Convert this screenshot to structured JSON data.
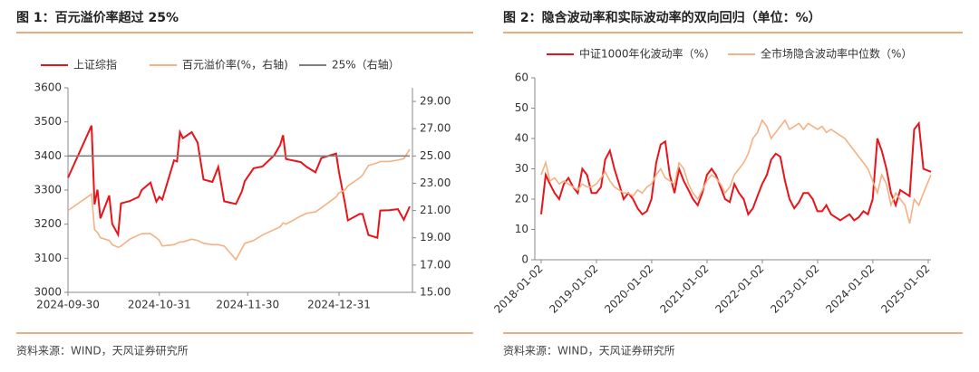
{
  "chart_data": [
    {
      "type": "line",
      "title": "图 1：百元溢价率超过 25%",
      "source": "资料来源：WIND，天风证券研究所",
      "x": [
        "2024-09-30",
        "2024-10-08",
        "2024-10-09",
        "2024-10-10",
        "2024-10-11",
        "2024-10-14",
        "2024-10-15",
        "2024-10-17",
        "2024-10-18",
        "2024-10-21",
        "2024-10-24",
        "2024-10-25",
        "2024-10-28",
        "2024-10-30",
        "2024-10-31",
        "2024-11-01",
        "2024-11-05",
        "2024-11-06",
        "2024-11-07",
        "2024-11-08",
        "2024-11-11",
        "2024-11-13",
        "2024-11-15",
        "2024-11-18",
        "2024-11-20",
        "2024-11-22",
        "2024-11-26",
        "2024-11-28",
        "2024-11-29",
        "2024-12-02",
        "2024-12-05",
        "2024-12-09",
        "2024-12-11",
        "2024-12-12",
        "2024-12-13",
        "2024-12-18",
        "2024-12-20",
        "2024-12-23",
        "2024-12-25",
        "2024-12-30",
        "2024-12-31",
        "2025-01-02",
        "2025-01-03",
        "2025-01-07",
        "2025-01-08",
        "2025-01-10",
        "2025-01-13",
        "2025-01-14",
        "2025-01-17",
        "2025-01-20",
        "2025-01-22",
        "2025-01-24"
      ],
      "series": [
        {
          "name": "上证综指",
          "color": "#e8141b",
          "values": [
            3336,
            3489,
            3258,
            3301,
            3217,
            3284,
            3201,
            3169,
            3261,
            3268,
            3280,
            3300,
            3322,
            3266,
            3280,
            3272,
            3387,
            3384,
            3470,
            3452,
            3470,
            3439,
            3331,
            3324,
            3368,
            3267,
            3259,
            3296,
            3326,
            3364,
            3369,
            3402,
            3432,
            3461,
            3391,
            3382,
            3368,
            3352,
            3394,
            3407,
            3352,
            3262,
            3211,
            3230,
            3230,
            3168,
            3160,
            3240,
            3241,
            3244,
            3213,
            3252
          ]
        },
        {
          "name": "百元溢价率(%，右轴)",
          "color": "#f4b183",
          "axis": "y2",
          "values": [
            21.0,
            22.2,
            19.6,
            19.4,
            19.0,
            18.8,
            18.5,
            18.3,
            18.4,
            18.9,
            19.2,
            19.3,
            19.3,
            19.0,
            18.8,
            18.4,
            18.5,
            18.6,
            18.7,
            18.7,
            18.9,
            18.8,
            18.6,
            18.5,
            18.5,
            18.4,
            17.4,
            18.2,
            18.6,
            18.8,
            19.2,
            19.6,
            19.8,
            20.1,
            20.0,
            20.6,
            20.8,
            20.9,
            21.2,
            22.0,
            22.3,
            22.5,
            22.8,
            23.4,
            23.6,
            24.3,
            24.5,
            24.6,
            24.6,
            24.7,
            24.8,
            25.5
          ]
        },
        {
          "name": "25%（右轴）",
          "color": "#7f7f7f",
          "axis": "y2",
          "values": [
            25,
            25,
            25,
            25,
            25,
            25,
            25,
            25,
            25,
            25,
            25,
            25,
            25,
            25,
            25,
            25,
            25,
            25,
            25,
            25,
            25,
            25,
            25,
            25,
            25,
            25,
            25,
            25,
            25,
            25,
            25,
            25,
            25,
            25,
            25,
            25,
            25,
            25,
            25,
            25,
            25,
            25,
            25,
            25,
            25,
            25,
            25,
            25,
            25,
            25,
            25,
            25
          ]
        }
      ],
      "xlim": [
        "2024-09-30",
        "2025-01-24"
      ],
      "xticks": [
        "2024-09-30",
        "2024-10-31",
        "2024-11-30",
        "2024-12-31"
      ],
      "ylim": [
        3000,
        3600
      ],
      "yticks": [
        3000,
        3100,
        3200,
        3300,
        3400,
        3500,
        3600
      ],
      "y2lim": [
        15,
        30
      ],
      "y2ticks": [
        {
          "value": 15,
          "label": "15.00"
        },
        {
          "value": 17,
          "label": "17.00"
        },
        {
          "value": 19,
          "label": "19.00"
        },
        {
          "value": 21,
          "label": "21.00"
        },
        {
          "value": 23,
          "label": "23.00"
        },
        {
          "value": 25,
          "label": "25.00"
        },
        {
          "value": 27,
          "label": "27.00"
        },
        {
          "value": 29,
          "label": "29.00"
        }
      ],
      "legend": "top"
    },
    {
      "type": "line",
      "title": "图 2：隐含波动率和实际波动率的双向回归（单位：%）",
      "source": "资料来源：WIND，天风证券研究所",
      "x": [
        "2018-01-02",
        "2018-02-01",
        "2018-03-01",
        "2018-04-01",
        "2018-05-01",
        "2018-06-01",
        "2018-07-01",
        "2018-08-01",
        "2018-09-01",
        "2018-10-01",
        "2018-11-01",
        "2018-12-01",
        "2019-01-01",
        "2019-02-01",
        "2019-03-01",
        "2019-04-01",
        "2019-05-01",
        "2019-06-01",
        "2019-07-01",
        "2019-08-01",
        "2019-09-01",
        "2019-10-01",
        "2019-11-01",
        "2019-12-01",
        "2020-01-01",
        "2020-02-01",
        "2020-03-01",
        "2020-04-01",
        "2020-05-01",
        "2020-06-01",
        "2020-07-01",
        "2020-08-01",
        "2020-09-01",
        "2020-10-01",
        "2020-11-01",
        "2020-12-01",
        "2021-01-01",
        "2021-02-01",
        "2021-03-01",
        "2021-04-01",
        "2021-05-01",
        "2021-06-01",
        "2021-07-01",
        "2021-08-01",
        "2021-09-01",
        "2021-10-01",
        "2021-11-01",
        "2021-12-01",
        "2022-01-01",
        "2022-02-01",
        "2022-03-01",
        "2022-04-01",
        "2022-05-01",
        "2022-06-01",
        "2022-07-01",
        "2022-08-01",
        "2022-09-01",
        "2022-10-01",
        "2022-11-01",
        "2022-12-01",
        "2023-01-01",
        "2023-02-01",
        "2023-03-01",
        "2023-04-01",
        "2023-05-01",
        "2023-06-01",
        "2023-07-01",
        "2023-08-01",
        "2023-09-01",
        "2023-10-01",
        "2023-11-01",
        "2023-12-01",
        "2024-01-01",
        "2024-02-01",
        "2024-03-01",
        "2024-04-01",
        "2024-05-01",
        "2024-06-01",
        "2024-07-01",
        "2024-08-01",
        "2024-09-01",
        "2024-10-01",
        "2024-11-01",
        "2024-12-01",
        "2025-01-20"
      ],
      "series": [
        {
          "name": "中证1000年化波动率（%）",
          "color": "#e8141b",
          "values": [
            15,
            28,
            25,
            22,
            20,
            25,
            27,
            24,
            22,
            30,
            28,
            22,
            22,
            24,
            33,
            36,
            30,
            25,
            20,
            22,
            20,
            17,
            15,
            16,
            20,
            32,
            38,
            39,
            28,
            22,
            30,
            26,
            23,
            20,
            18,
            22,
            28,
            30,
            28,
            24,
            20,
            19,
            25,
            22,
            20,
            15,
            17,
            21,
            25,
            28,
            33,
            35,
            34,
            26,
            20,
            17,
            19,
            22,
            22,
            20,
            16,
            16,
            18,
            15,
            14,
            13,
            14,
            15,
            13,
            14,
            16,
            15,
            20,
            40,
            36,
            30,
            22,
            18,
            23,
            22,
            21,
            43,
            45,
            30,
            29
          ]
        },
        {
          "name": "全市场隐含波动率中位数（%）",
          "color": "#f4b183",
          "values": [
            28,
            32,
            26,
            27,
            25,
            26,
            25,
            24,
            23,
            25,
            24,
            24,
            25,
            27,
            29,
            26,
            24,
            23,
            22,
            22,
            21,
            23,
            22,
            24,
            25,
            28,
            30,
            27,
            26,
            25,
            32,
            30,
            25,
            22,
            20,
            23,
            26,
            28,
            27,
            25,
            22,
            24,
            28,
            30,
            32,
            35,
            40,
            42,
            46,
            44,
            40,
            42,
            44,
            46,
            43,
            44,
            45,
            43,
            45,
            44,
            43,
            44,
            42,
            43,
            42,
            41,
            40,
            38,
            36,
            34,
            32,
            30,
            26,
            22,
            28,
            25,
            18,
            22,
            20,
            18,
            12,
            20,
            18,
            22,
            28
          ]
        }
      ],
      "xlim": [
        "2018-01-02",
        "2025-01-20"
      ],
      "xticks": [
        "2018-01-02",
        "2019-01-02",
        "2020-01-02",
        "2021-01-02",
        "2022-01-02",
        "2023-01-02",
        "2024-01-02",
        "2025-01-02"
      ],
      "ylim": [
        0,
        60
      ],
      "yticks": [
        0,
        10,
        20,
        30,
        40,
        50,
        60
      ],
      "legend": "top"
    }
  ]
}
